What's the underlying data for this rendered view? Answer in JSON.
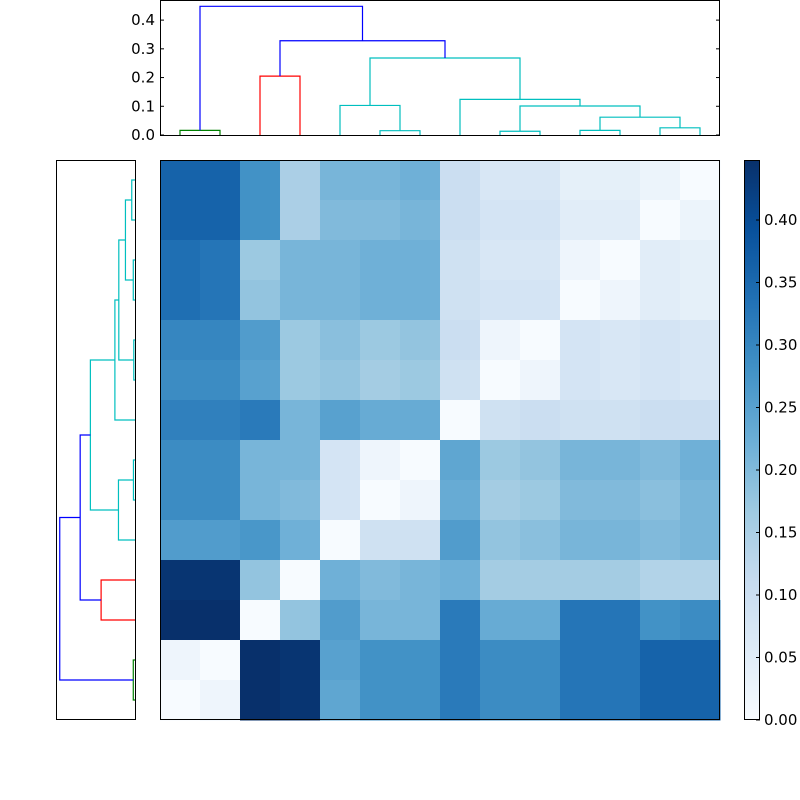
{
  "chart_data": {
    "type": "heatmap",
    "title": "",
    "colormap": "Blues",
    "vmin": 0.0,
    "vmax": 0.448,
    "n_leaves": 14,
    "matrix": [
      [
        0.36,
        0.36,
        0.28,
        0.15,
        0.21,
        0.21,
        0.22,
        0.1,
        0.07,
        0.07,
        0.04,
        0.04,
        0.025,
        0.0
      ],
      [
        0.36,
        0.36,
        0.28,
        0.15,
        0.2,
        0.2,
        0.21,
        0.1,
        0.08,
        0.08,
        0.05,
        0.05,
        0.0,
        0.025
      ],
      [
        0.34,
        0.33,
        0.17,
        0.21,
        0.21,
        0.22,
        0.22,
        0.09,
        0.07,
        0.07,
        0.02,
        0.0,
        0.05,
        0.04
      ],
      [
        0.34,
        0.33,
        0.18,
        0.21,
        0.21,
        0.22,
        0.22,
        0.09,
        0.08,
        0.08,
        0.0,
        0.02,
        0.05,
        0.04
      ],
      [
        0.3,
        0.3,
        0.26,
        0.17,
        0.19,
        0.17,
        0.18,
        0.1,
        0.02,
        0.0,
        0.08,
        0.07,
        0.08,
        0.07
      ],
      [
        0.29,
        0.29,
        0.25,
        0.17,
        0.18,
        0.16,
        0.17,
        0.09,
        0.0,
        0.02,
        0.08,
        0.07,
        0.08,
        0.07
      ],
      [
        0.31,
        0.31,
        0.32,
        0.21,
        0.25,
        0.23,
        0.23,
        0.0,
        0.09,
        0.1,
        0.09,
        0.09,
        0.1,
        0.1
      ],
      [
        0.29,
        0.29,
        0.21,
        0.21,
        0.08,
        0.02,
        0.0,
        0.24,
        0.17,
        0.18,
        0.21,
        0.21,
        0.2,
        0.22
      ],
      [
        0.29,
        0.29,
        0.21,
        0.2,
        0.08,
        0.0,
        0.02,
        0.23,
        0.16,
        0.17,
        0.2,
        0.2,
        0.19,
        0.21
      ],
      [
        0.26,
        0.26,
        0.27,
        0.22,
        0.0,
        0.09,
        0.09,
        0.26,
        0.18,
        0.19,
        0.21,
        0.21,
        0.2,
        0.21
      ],
      [
        0.44,
        0.44,
        0.18,
        0.0,
        0.22,
        0.2,
        0.21,
        0.22,
        0.16,
        0.16,
        0.16,
        0.16,
        0.14,
        0.14
      ],
      [
        0.45,
        0.45,
        0.0,
        0.18,
        0.26,
        0.21,
        0.21,
        0.32,
        0.23,
        0.23,
        0.33,
        0.33,
        0.28,
        0.29
      ],
      [
        0.02,
        0.0,
        0.45,
        0.44,
        0.25,
        0.28,
        0.28,
        0.32,
        0.29,
        0.29,
        0.33,
        0.33,
        0.36,
        0.36
      ],
      [
        0.0,
        0.02,
        0.45,
        0.44,
        0.24,
        0.28,
        0.28,
        0.32,
        0.29,
        0.29,
        0.33,
        0.33,
        0.36,
        0.36
      ]
    ],
    "dendrogram": {
      "ylim": [
        0,
        0.47
      ],
      "yticks": [
        "0.0",
        "0.1",
        "0.2",
        "0.3",
        "0.4"
      ],
      "ytick_values": [
        0,
        0.1,
        0.2,
        0.3,
        0.4
      ],
      "links": [
        {
          "x": [
            0,
            1
          ],
          "h": 0.016,
          "lh": [
            0,
            0
          ],
          "color": "#008000"
        },
        {
          "x": [
            2,
            3
          ],
          "h": 0.205,
          "lh": [
            0,
            0
          ],
          "color": "#ff0000"
        },
        {
          "x": [
            5,
            6
          ],
          "h": 0.015,
          "lh": [
            0,
            0
          ],
          "color": "#00bfbf"
        },
        {
          "x": [
            4,
            5.5
          ],
          "h": 0.103,
          "lh": [
            0,
            0.015
          ],
          "color": "#00bfbf"
        },
        {
          "x": [
            8,
            9
          ],
          "h": 0.013,
          "lh": [
            0,
            0
          ],
          "color": "#00bfbf"
        },
        {
          "x": [
            10,
            11
          ],
          "h": 0.016,
          "lh": [
            0,
            0
          ],
          "color": "#00bfbf"
        },
        {
          "x": [
            12,
            13
          ],
          "h": 0.025,
          "lh": [
            0,
            0
          ],
          "color": "#00bfbf"
        },
        {
          "x": [
            10.5,
            12.5
          ],
          "h": 0.062,
          "lh": [
            0.016,
            0.025
          ],
          "color": "#00bfbf"
        },
        {
          "x": [
            8.5,
            11.5
          ],
          "h": 0.101,
          "lh": [
            0.013,
            0.062
          ],
          "color": "#00bfbf"
        },
        {
          "x": [
            7,
            10
          ],
          "h": 0.124,
          "lh": [
            0,
            0.101
          ],
          "color": "#00bfbf"
        },
        {
          "x": [
            4.75,
            8.5
          ],
          "h": 0.268,
          "lh": [
            0.103,
            0.124
          ],
          "color": "#00bfbf"
        },
        {
          "x": [
            2.5,
            6.625
          ],
          "h": 0.328,
          "lh": [
            0.205,
            0.268
          ],
          "color": "#0000ff"
        },
        {
          "x": [
            0.5,
            4.5625
          ],
          "h": 0.448,
          "lh": [
            0.016,
            0.328
          ],
          "color": "#0000ff"
        }
      ]
    },
    "colorbar": {
      "ticks": [
        "0.00",
        "0.05",
        "0.10",
        "0.15",
        "0.20",
        "0.25",
        "0.30",
        "0.35",
        "0.40"
      ],
      "tick_values": [
        0,
        0.05,
        0.1,
        0.15,
        0.2,
        0.25,
        0.3,
        0.35,
        0.4
      ]
    }
  }
}
